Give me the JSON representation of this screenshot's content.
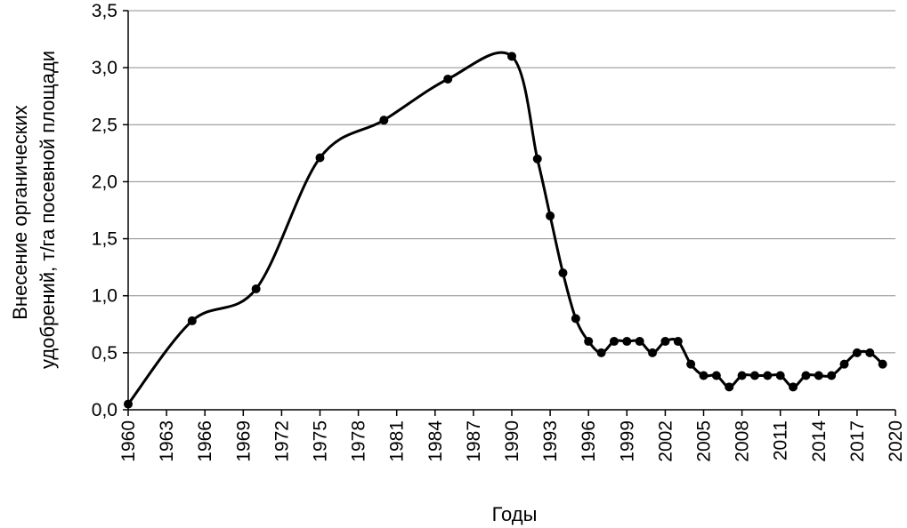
{
  "chart_data": {
    "type": "line",
    "title": "",
    "xlabel": "Годы",
    "ylabel_lines": [
      "Внесение органических",
      "удобрений, т/га посевной площади"
    ],
    "xlim": [
      1960,
      2020
    ],
    "ylim": [
      0,
      3.5
    ],
    "x_ticks": [
      "1960",
      "1963",
      "1966",
      "1969",
      "1972",
      "1975",
      "1978",
      "1981",
      "1984",
      "1987",
      "1990",
      "1993",
      "1996",
      "1999",
      "2002",
      "2005",
      "2008",
      "2011",
      "2014",
      "2017",
      "2020"
    ],
    "y_ticks": [
      "0,0",
      "0,5",
      "1,0",
      "1,5",
      "2,0",
      "2,5",
      "3,0",
      "3,5"
    ],
    "grid": "horizontal",
    "series": [
      {
        "color": "#000000",
        "smooth": true,
        "marker": "circle",
        "points": [
          [
            1960,
            0.05
          ],
          [
            1965,
            0.78
          ],
          [
            1970,
            1.06
          ],
          [
            1975,
            2.21
          ],
          [
            1980,
            2.54
          ],
          [
            1985,
            2.9
          ],
          [
            1990,
            3.1
          ],
          [
            1992,
            2.2
          ],
          [
            1993,
            1.7
          ],
          [
            1994,
            1.2
          ],
          [
            1995,
            0.8
          ],
          [
            1996,
            0.6
          ],
          [
            1997,
            0.5
          ],
          [
            1998,
            0.6
          ],
          [
            1999,
            0.6
          ],
          [
            2000,
            0.6
          ],
          [
            2001,
            0.5
          ],
          [
            2002,
            0.6
          ],
          [
            2003,
            0.6
          ],
          [
            2004,
            0.4
          ],
          [
            2005,
            0.3
          ],
          [
            2006,
            0.3
          ],
          [
            2007,
            0.2
          ],
          [
            2008,
            0.3
          ],
          [
            2009,
            0.3
          ],
          [
            2010,
            0.3
          ],
          [
            2011,
            0.3
          ],
          [
            2012,
            0.2
          ],
          [
            2013,
            0.3
          ],
          [
            2014,
            0.3
          ],
          [
            2015,
            0.3
          ],
          [
            2016,
            0.4
          ],
          [
            2017,
            0.5
          ],
          [
            2018,
            0.5
          ],
          [
            2019,
            0.4
          ]
        ]
      }
    ]
  }
}
